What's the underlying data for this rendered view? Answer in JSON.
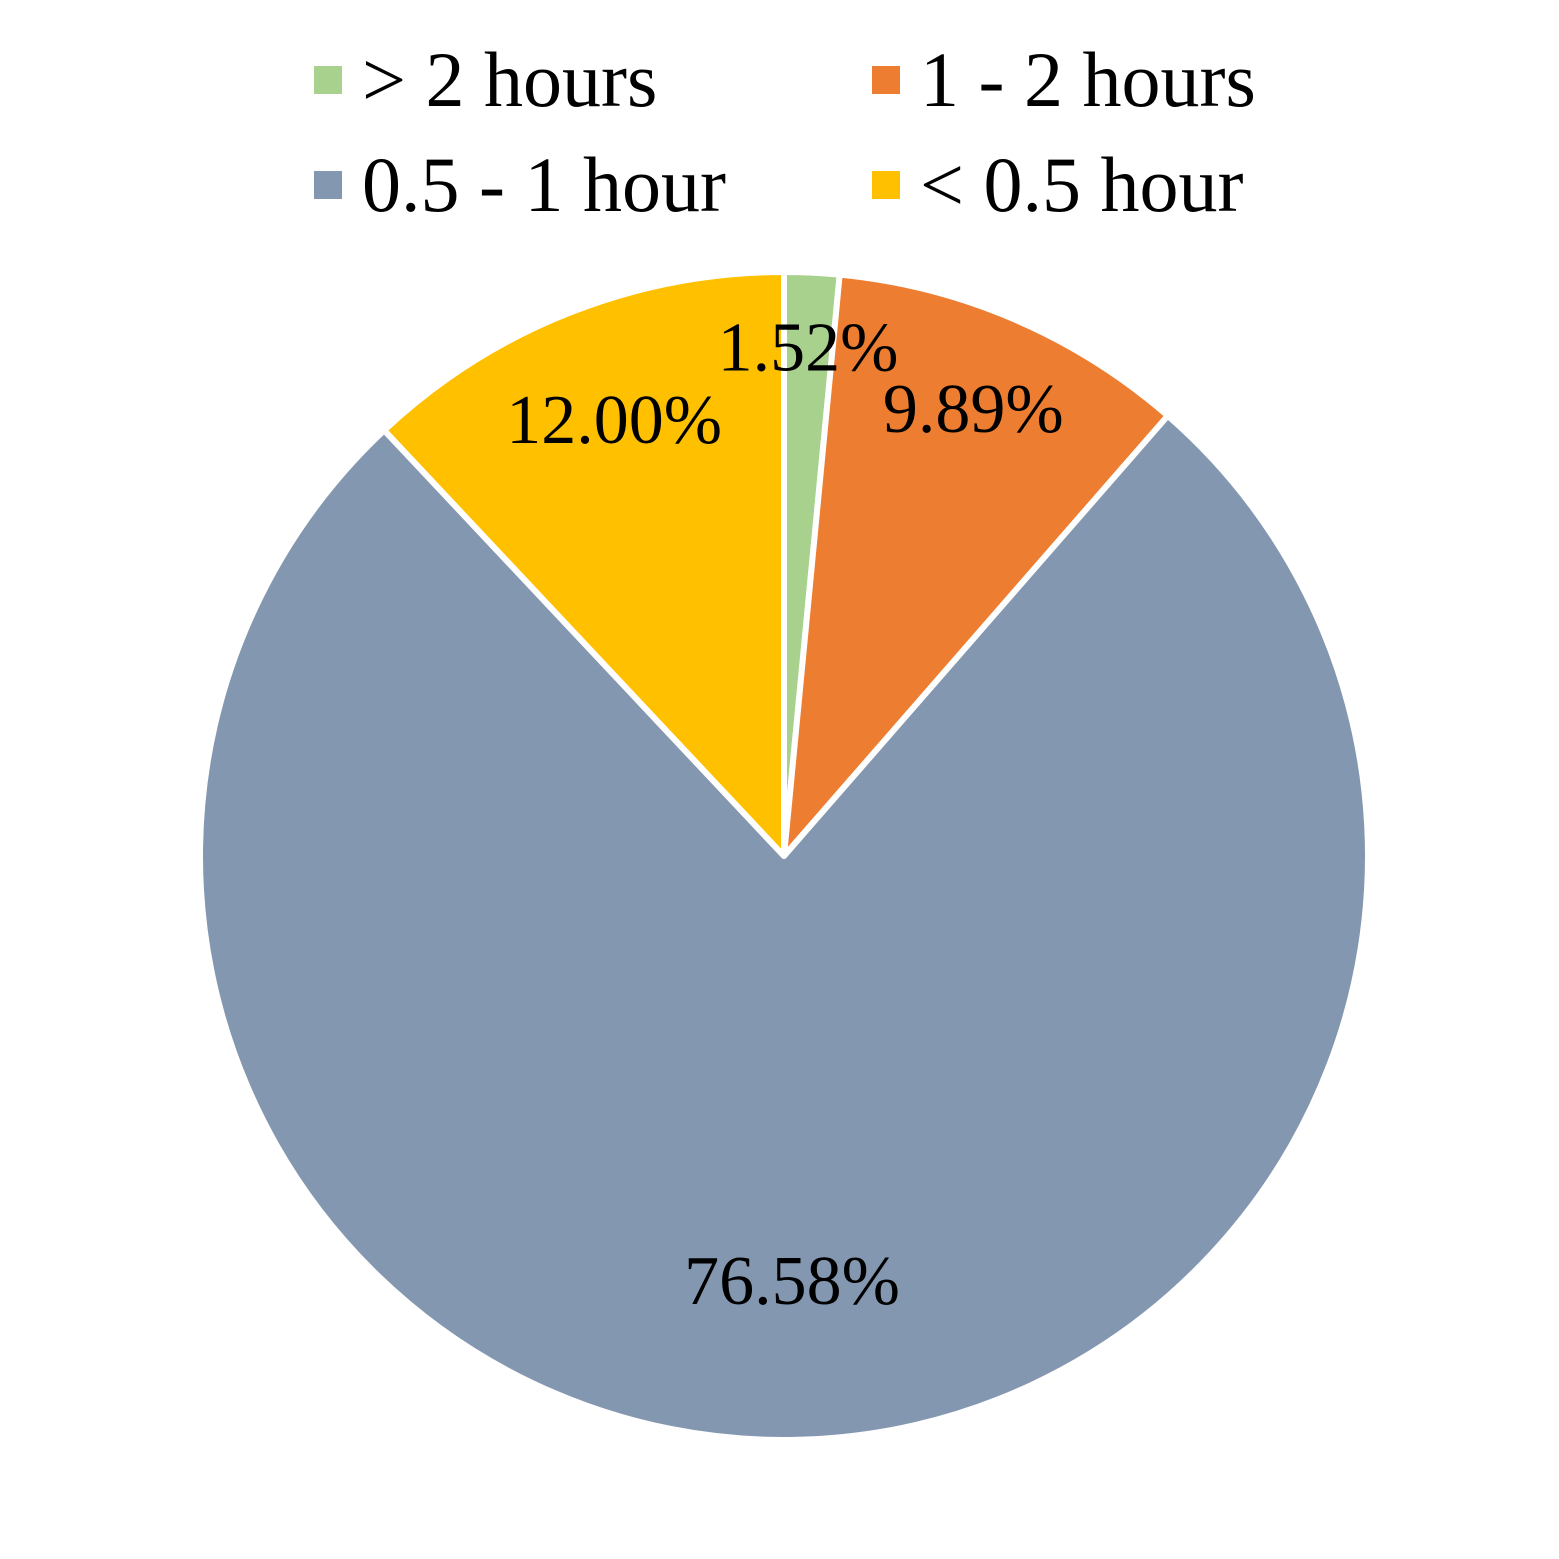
{
  "chart_data": {
    "type": "pie",
    "categories": [
      "> 2 hours",
      "1 - 2 hours",
      "0.5 - 1 hour",
      "< 0.5 hour"
    ],
    "values": [
      1.52,
      9.89,
      76.58,
      12.0
    ],
    "data_labels": [
      "1.52%",
      "9.89%",
      "76.58%",
      "12.00%"
    ],
    "colors": [
      "#A9D18E",
      "#ED7D31",
      "#8497B0",
      "#FFC000"
    ],
    "legend_position": "top",
    "start_angle": "12 o'clock",
    "direction": "clockwise"
  }
}
